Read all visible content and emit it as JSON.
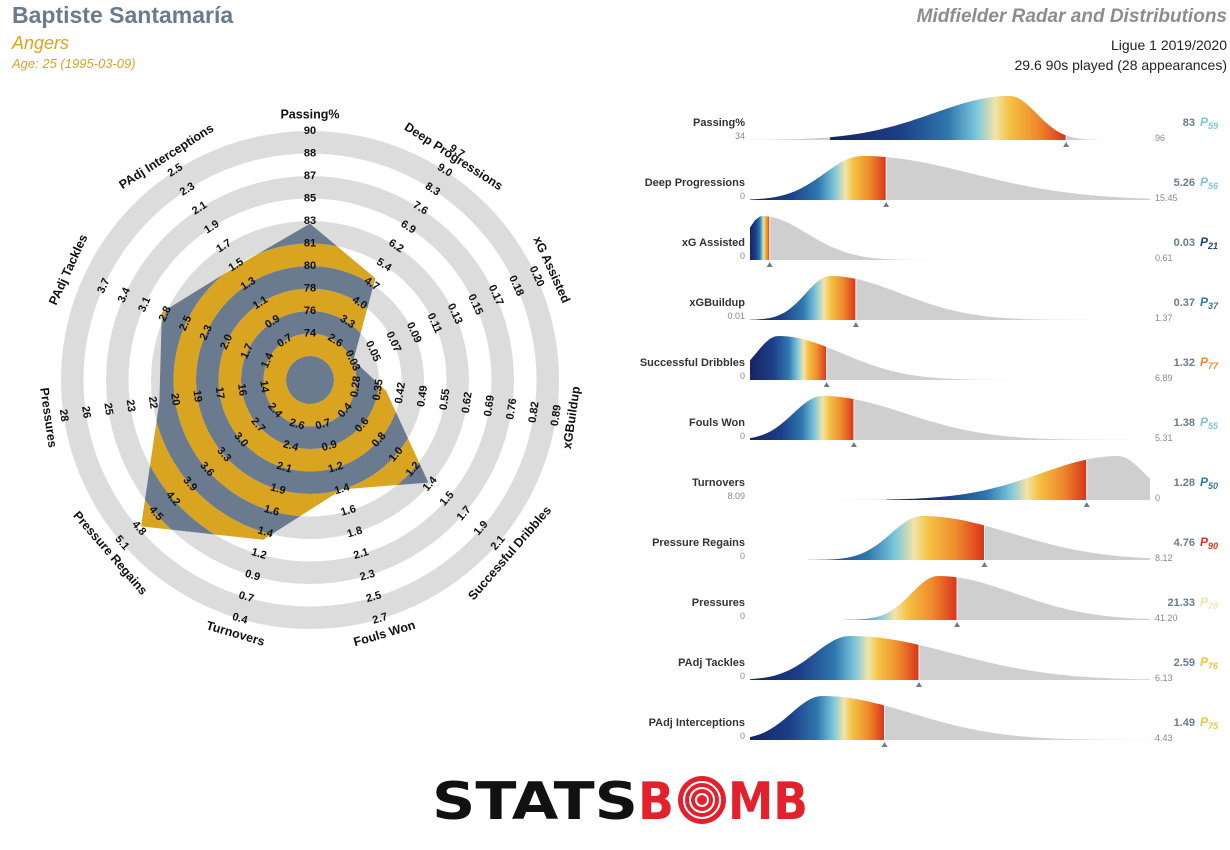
{
  "header": {
    "player_name": "Baptiste Santamaría",
    "team": "Angers",
    "age_line": "Age: 25 (1995-03-09)",
    "title": "Midfielder Radar and Distributions",
    "league_season": "Ligue 1 2019/2020",
    "minutes_line": "29.6 90s played (28 appearances)"
  },
  "colors": {
    "name": "#6a7a8f",
    "accent": "#d9a521",
    "ring_grey": "#dcdcdc",
    "ring_gold": "#d9a521",
    "ring_slate": "#6a7a8f",
    "dist_fill": "#cfcfcf",
    "logo_black": "#111111",
    "logo_red": "#e3212c"
  },
  "chart_data": [
    {
      "type": "radar",
      "axes": [
        {
          "label": "Passing%",
          "ticks": [
            "74",
            "76",
            "78",
            "80",
            "81",
            "83",
            "85",
            "87",
            "88",
            "90"
          ],
          "value": 83,
          "range": [
            73,
            90
          ],
          "inverted": false
        },
        {
          "label": "Deep Progressions",
          "ticks": [
            "2.6",
            "3.3",
            "4.0",
            "4.7",
            "5.4",
            "6.2",
            "6.9",
            "7.6",
            "8.3",
            "9.0",
            "9.7"
          ],
          "value": 5.26,
          "range": [
            1.9,
            9.7
          ],
          "inverted": false
        },
        {
          "label": "xG Assisted",
          "ticks": [
            "0.03",
            "0.05",
            "0.07",
            "0.09",
            "0.11",
            "0.13",
            "0.15",
            "0.17",
            "0.18",
            "0.20"
          ],
          "value": 0.03,
          "range": [
            0.01,
            0.2
          ],
          "inverted": false
        },
        {
          "label": "xGBuildup",
          "ticks": [
            "0.28",
            "0.35",
            "0.42",
            "0.49",
            "0.55",
            "0.62",
            "0.69",
            "0.76",
            "0.82",
            "0.89"
          ],
          "value": 0.37,
          "range": [
            0.21,
            0.89
          ],
          "inverted": false
        },
        {
          "label": "Successful Dribbles",
          "ticks": [
            "0.4",
            "0.6",
            "0.8",
            "1.0",
            "1.2",
            "1.4",
            "1.5",
            "1.7",
            "1.9",
            "2.1"
          ],
          "value": 1.32,
          "range": [
            0.2,
            2.1
          ],
          "inverted": false
        },
        {
          "label": "Fouls Won",
          "ticks": [
            "0.7",
            "0.9",
            "1.2",
            "1.4",
            "1.6",
            "1.8",
            "2.1",
            "2.3",
            "2.5",
            "2.7"
          ],
          "value": 1.38,
          "range": [
            0.5,
            2.7
          ],
          "inverted": false
        },
        {
          "label": "Turnovers",
          "ticks": [
            "2.6",
            "2.4",
            "2.1",
            "1.9",
            "1.6",
            "1.4",
            "1.2",
            "0.9",
            "0.7",
            "0.4"
          ],
          "value": 1.28,
          "range": [
            2.8,
            0.4
          ],
          "inverted": true
        },
        {
          "label": "Pressure Regains",
          "ticks": [
            "2.4",
            "2.7",
            "3.0",
            "3.3",
            "3.6",
            "3.9",
            "4.2",
            "4.5",
            "4.8",
            "5.1"
          ],
          "value": 4.76,
          "range": [
            2.1,
            5.1
          ],
          "inverted": false
        },
        {
          "label": "Pressures",
          "ticks": [
            "14",
            "16",
            "17",
            "19",
            "20",
            "22",
            "23",
            "25",
            "26",
            "28"
          ],
          "value": 21.33,
          "range": [
            12.5,
            28
          ],
          "inverted": false
        },
        {
          "label": "PAdj Tackles",
          "ticks": [
            "1.4",
            "1.7",
            "2.0",
            "2.3",
            "2.5",
            "2.8",
            "3.1",
            "3.4",
            "3.7"
          ],
          "value": 2.59,
          "range": [
            0.8,
            3.7
          ],
          "inverted": false
        },
        {
          "label": "PAdj Interceptions",
          "ticks": [
            "0.7",
            "0.9",
            "1.1",
            "1.3",
            "1.5",
            "1.7",
            "1.9",
            "2.1",
            "2.3",
            "2.5"
          ],
          "value": 1.49,
          "range": [
            0.5,
            2.5
          ],
          "inverted": false
        }
      ]
    },
    {
      "type": "area",
      "note_values": "distribution per metric; player value marked with percentile",
      "series": [
        {
          "name": "Passing%",
          "min": "34",
          "max": "96",
          "value": "83",
          "percentile": "59",
          "pct_num": 59,
          "value_num": 83,
          "min_num": 34,
          "max_num": 96,
          "peak": 0.65,
          "spread": 0.12,
          "skew": -1
        },
        {
          "name": "Deep Progressions",
          "min": "0",
          "max": "15.45",
          "value": "5.26",
          "percentile": "56",
          "pct_num": 56,
          "value_num": 5.26,
          "min_num": 0,
          "max_num": 15.45,
          "peak": 0.28,
          "spread": 0.17,
          "skew": 1
        },
        {
          "name": "xG Assisted",
          "min": "0",
          "max": "0.61",
          "value": "0.03",
          "percentile": "21",
          "pct_num": 21,
          "value_num": 0.03,
          "min_num": 0,
          "max_num": 0.61,
          "peak": 0.03,
          "spread": 0.07,
          "skew": 1
        },
        {
          "name": "xGBuildup",
          "min": "0.01",
          "max": "1.37",
          "value": "0.37",
          "percentile": "37",
          "pct_num": 37,
          "value_num": 0.37,
          "min_num": 0.01,
          "max_num": 1.37,
          "peak": 0.2,
          "spread": 0.11,
          "skew": 1
        },
        {
          "name": "Successful Dribbles",
          "min": "0",
          "max": "6.89",
          "value": "1.32",
          "percentile": "77",
          "pct_num": 77,
          "value_num": 1.32,
          "min_num": 0,
          "max_num": 6.89,
          "peak": 0.07,
          "spread": 0.1,
          "skew": 1
        },
        {
          "name": "Fouls Won",
          "min": "0",
          "max": "5.31",
          "value": "1.38",
          "percentile": "55",
          "pct_num": 55,
          "value_num": 1.38,
          "min_num": 0,
          "max_num": 5.31,
          "peak": 0.18,
          "spread": 0.13,
          "skew": 1
        },
        {
          "name": "Turnovers",
          "min": "8.09",
          "max": "0",
          "value": "1.28",
          "percentile": "50",
          "pct_num": 50,
          "value_num": 1.28,
          "min_num": 8.09,
          "max_num": 0,
          "peak": 0.92,
          "spread": 0.12,
          "skew": -1
        },
        {
          "name": "Pressure Regains",
          "min": "0",
          "max": "8.12",
          "value": "4.76",
          "percentile": "90",
          "pct_num": 90,
          "value_num": 4.76,
          "min_num": 0,
          "max_num": 8.12,
          "peak": 0.43,
          "spread": 0.14,
          "skew": 1
        },
        {
          "name": "Pressures",
          "min": "0",
          "max": "41.20",
          "value": "21.33",
          "percentile": "70",
          "pct_num": 70,
          "value_num": 21.33,
          "min_num": 0,
          "max_num": 41.2,
          "peak": 0.47,
          "spread": 0.12,
          "skew": 1
        },
        {
          "name": "PAdj Tackles",
          "min": "0",
          "max": "6.13",
          "value": "2.59",
          "percentile": "76",
          "pct_num": 76,
          "value_num": 2.59,
          "min_num": 0,
          "max_num": 6.13,
          "peak": 0.25,
          "spread": 0.16,
          "skew": 1
        },
        {
          "name": "PAdj Interceptions",
          "min": "0",
          "max": "4.43",
          "value": "1.49",
          "percentile": "75",
          "pct_num": 75,
          "value_num": 1.49,
          "min_num": 0,
          "max_num": 4.43,
          "peak": 0.18,
          "spread": 0.14,
          "skew": 1
        }
      ]
    }
  ],
  "logo": {
    "text_left": "STATS",
    "text_right": "B",
    "text_after": "MB"
  }
}
